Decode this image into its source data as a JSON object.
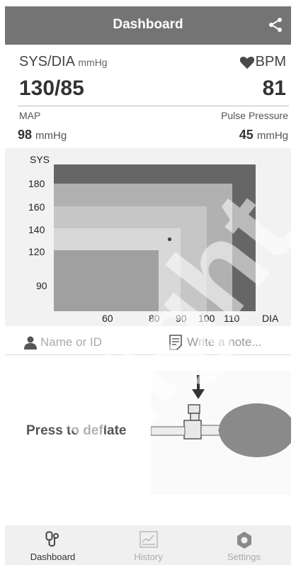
{
  "header": {
    "title": "Dashboard",
    "share_icon": "share-icon"
  },
  "reading": {
    "sysdia_label": "SYS/DIA",
    "sysdia_unit": "mmHg",
    "bpm_label": "BPM",
    "sysdia_value": "130/85",
    "bpm_value": "81",
    "map_label": "MAP",
    "map_value": "98",
    "map_unit": "mmHg",
    "pp_label": "Pulse Pressure",
    "pp_value": "45",
    "pp_unit": "mmHg"
  },
  "chart_data": {
    "type": "heatmap",
    "y_axis_title": "SYS",
    "x_axis_title": "DIA",
    "y_ticks": [
      180,
      160,
      140,
      120,
      90
    ],
    "x_ticks": [
      60,
      80,
      90,
      100,
      110
    ],
    "point": {
      "x": 85,
      "y": 130
    },
    "zones": [
      {
        "max_sys": 120,
        "max_dia": 80,
        "color": "#a0a0a0"
      },
      {
        "max_sys": 140,
        "max_dia": 90,
        "color": "#d8d8d8"
      },
      {
        "max_sys": 160,
        "max_dia": 100,
        "color": "#c6c6c6"
      },
      {
        "max_sys": 180,
        "max_dia": 110,
        "color": "#b1b1b1"
      },
      {
        "max_sys": 200,
        "max_dia": 120,
        "color": "#666666"
      }
    ]
  },
  "inputs": {
    "name_placeholder": "Name or ID",
    "note_placeholder": "Write a note..."
  },
  "deflate": {
    "label": "Press to deflate"
  },
  "tabs": [
    {
      "label": "Dashboard",
      "icon": "stethoscope-icon",
      "active": true
    },
    {
      "label": "History",
      "icon": "chart-icon",
      "active": false
    },
    {
      "label": "Settings",
      "icon": "gear-icon",
      "active": false
    }
  ],
  "watermark": "Eight"
}
